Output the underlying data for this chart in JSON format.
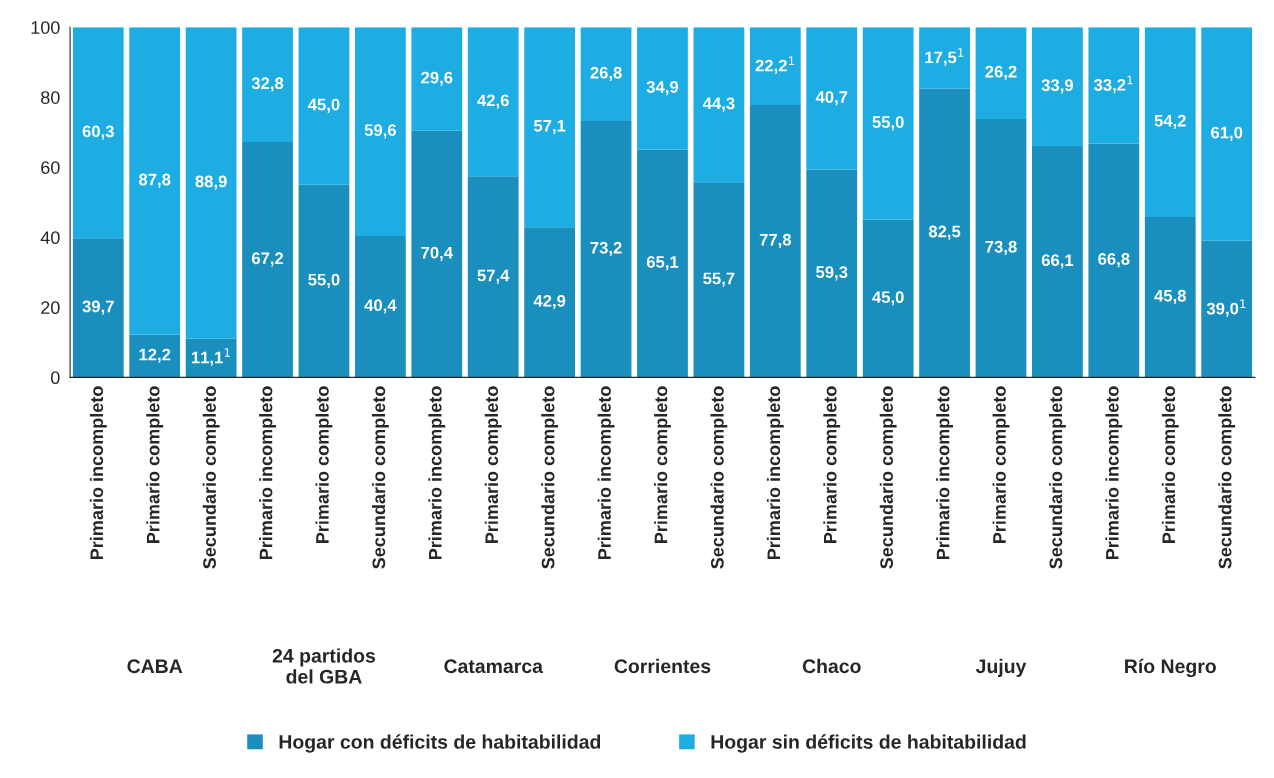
{
  "chart_data": {
    "type": "bar",
    "stacked": true,
    "categories": [
      "Primario incompleto",
      "Primario completo",
      "Secundario completo",
      "Primario incompleto",
      "Primario completo",
      "Secundario completo",
      "Primario incompleto",
      "Primario completo",
      "Secundario completo",
      "Primario incompleto",
      "Primario completo",
      "Secundario completo",
      "Primario incompleto",
      "Primario completo",
      "Secundario completo",
      "Primario incompleto",
      "Primario completo",
      "Secundario completo",
      "Primario incompleto",
      "Primario completo",
      "Secundario completo"
    ],
    "series": [
      {
        "name": "Hogar con déficits de habitabilidad",
        "color": "#1a8fbe",
        "values": [
          39.7,
          12.2,
          11.1,
          67.2,
          55.0,
          40.4,
          70.4,
          57.4,
          42.9,
          73.2,
          65.1,
          55.7,
          77.8,
          59.3,
          45.0,
          82.5,
          73.8,
          66.1,
          66.8,
          45.8,
          39.0
        ],
        "value_labels": [
          "39,7",
          "12,2",
          "11,1$^{1}$",
          "67,2",
          "55,0",
          "40,4",
          "70,4",
          "57,4",
          "42,9",
          "73,2",
          "65,1",
          "55,7",
          "77,8",
          "59,3",
          "45,0",
          "82,5",
          "73,8",
          "66,1",
          "66,8",
          "45,8",
          "39,0$^{1}$"
        ]
      },
      {
        "name": "Hogar sin déficits de habitabilidad",
        "color": "#1eade3",
        "values": [
          60.3,
          87.8,
          88.9,
          32.8,
          45.0,
          59.6,
          29.6,
          42.6,
          57.1,
          26.8,
          34.9,
          44.3,
          22.2,
          40.7,
          55.0,
          17.5,
          26.2,
          33.9,
          33.2,
          54.2,
          61.0
        ],
        "value_labels": [
          "60,3",
          "87,8",
          "88,9",
          "32,8",
          "45,0",
          "59,6",
          "29,6",
          "42,6",
          "57,1",
          "26,8",
          "34,9",
          "44,3",
          "22,2$^{1}$",
          "40,7",
          "55,0",
          "17,5$^{1}$",
          "26,2",
          "33,9",
          "33,2$^{1}$",
          "54,2",
          "61,0"
        ]
      }
    ],
    "annotations": [
      "CABA",
      "24 partidos\ndel GBA",
      "Catamarca",
      "Corrientes",
      "Chaco",
      "Jujuy",
      "Río Negro"
    ],
    "ylim": [
      0,
      100
    ],
    "yticks": [
      0,
      20,
      40,
      60,
      80,
      100
    ],
    "grid": false,
    "legend": "bottom"
  }
}
